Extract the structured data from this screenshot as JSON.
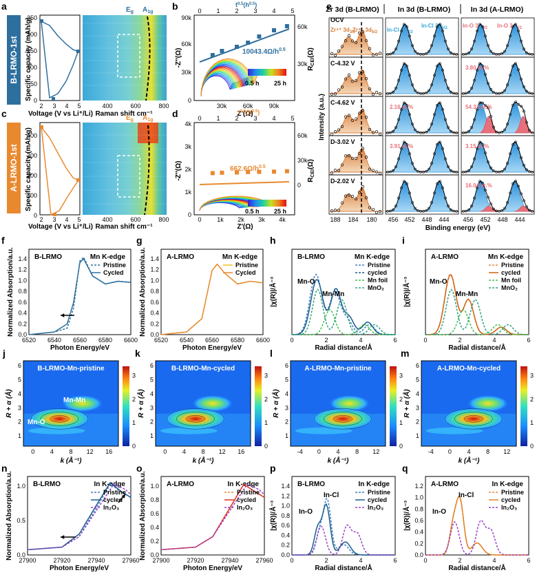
{
  "panel_labels": [
    "a",
    "b",
    "c",
    "d",
    "e",
    "f",
    "g",
    "h",
    "i",
    "j",
    "k",
    "l",
    "m",
    "n",
    "o",
    "p",
    "q"
  ],
  "colors": {
    "b_lrmo": "#2e6f9e",
    "a_lrmo": "#e8892f",
    "cyan": "#36a9d8",
    "pink": "#e8707a",
    "green": "#3ec24a",
    "purple": "#9a3fc8"
  },
  "side_labels": {
    "b": "B-LRMO-1st",
    "a": "A-LRMO-1st"
  },
  "panel_a": {
    "ylabel": "Specific capacity (mAh/g)",
    "xlabel": "Voltage (V vs Li⁺/Li)",
    "raman_xlabel": "Raman shift cm⁻¹",
    "Eg": "E",
    "Eg_sub": "g",
    "A1g": "A",
    "A1g_sub": "1g",
    "yticks": [
      "0",
      "50",
      "100",
      "150",
      "200",
      "250"
    ],
    "xticks": [
      "2",
      "3",
      "4",
      "5"
    ],
    "raman_ticks": [
      "400",
      "600",
      "800"
    ]
  },
  "panel_c": {
    "yticks": [
      "0",
      "100",
      "200",
      "300",
      "400"
    ],
    "xticks": [
      "2",
      "3",
      "4",
      "5"
    ],
    "raman_ticks": [
      "400",
      "600",
      "800"
    ]
  },
  "panel_b": {
    "ylabel": "-Z''(Ω)",
    "xlabel": "Z'(Ω)",
    "rlabel": "R",
    "rlabel_sub": "CEI",
    "rlabel_unit": "(Ω)",
    "toplabel": "t",
    "toplabel_sup": "0.5",
    "toplabel_unit": "(h",
    "toplabel_unit_sup": "0.5",
    "slope": "10043.4Ω/h",
    "slope_sup": "0.5",
    "yticks": [
      "0",
      "30k",
      "60k",
      "90k"
    ],
    "xticks": [
      "30k",
      "60k",
      "90k"
    ],
    "rticks": [
      "30k",
      "60k"
    ],
    "topticks": [
      "0",
      "1",
      "2",
      "3",
      "4",
      "5"
    ],
    "cbar_min": "0.5 h",
    "cbar_max": "25 h"
  },
  "panel_d": {
    "slope": "662.6Ω/h",
    "slope_sup": "0.5",
    "yticks": [
      "0",
      "1k",
      "2k",
      "3k",
      "4k"
    ],
    "xticks": [
      "0",
      "1k",
      "2k",
      "3k",
      "4k"
    ],
    "rticks": [
      "0",
      "30k",
      "60k"
    ],
    "topticks": [
      "0",
      "1",
      "2",
      "3",
      "4",
      "5"
    ],
    "cbar_min": "0.5 h",
    "cbar_max": "25 h"
  },
  "panel_e": {
    "headers": [
      "Zr 3d (B-LRMO)",
      "In 3d (B-LRMO)",
      "In 3d (A-LRMO)"
    ],
    "row_labels": [
      "OCV",
      "C-4.32 V",
      "C-4.62 V",
      "D-3.02 V",
      "D-2.02 V"
    ],
    "zr_labels": [
      "Zr⁴⁺ 3d",
      "Zr⁴⁺ 3d"
    ],
    "zr_subs": [
      "3/2",
      "5/2"
    ],
    "in_labels": [
      "In-Cl 3d",
      "In-Cl 3d"
    ],
    "in_subs": [
      "3/2",
      "5/2"
    ],
    "ino_labels": [
      "In-O 3d",
      "In-O 3d"
    ],
    "ino_subs": [
      "3/2",
      "5/2"
    ],
    "percent_b": [
      "2.16 at.%",
      "3.91 at.%"
    ],
    "percent_a": [
      "3.80 at.%",
      "54.33 at.%",
      "3.15 at.%",
      "16.04 at.%"
    ],
    "ylabel": "Intensity (a.u.)",
    "xlabel": "Binding energy (eV)",
    "xticks_zr": [
      "188",
      "184",
      "180"
    ],
    "xticks_in": [
      "456",
      "452",
      "448",
      "444"
    ]
  },
  "panel_f": {
    "title": "B-LRMO",
    "edge": "Mn K-edge",
    "legend": [
      "Pristine",
      "Cycled"
    ],
    "xlabel": "Photon Energy/eV",
    "ylabel": "Normalized Absorption/a.u.",
    "xticks": [
      "6520",
      "6540",
      "6560",
      "6580",
      "6600"
    ],
    "yticks": [
      "0.0",
      "0.2",
      "0.4",
      "0.6",
      "0.8",
      "1.0",
      "1.2",
      "1.4"
    ]
  },
  "panel_g": {
    "title": "A-LRMO",
    "edge": "Mn K-edge",
    "legend": [
      "Pristine",
      "Cycled"
    ],
    "xlabel": "Photon Energy/eV",
    "ylabel": "Normalized Absorption/a.u.",
    "xticks": [
      "6520",
      "6540",
      "6560",
      "6580",
      "6600"
    ],
    "yticks": [
      "0.0",
      "0.2",
      "0.4",
      "0.6",
      "0.8",
      "1.0",
      "1.2",
      "1.4"
    ]
  },
  "panel_h": {
    "title": "B-LRMO",
    "edge": "Mn K-edge",
    "legend": [
      "Pristine",
      "cycled",
      "Mn foil",
      "MnO₂"
    ],
    "ann": [
      "Mn-O",
      "Mn-Mn"
    ],
    "xlabel": "Radial distance/Å",
    "ylabel": "|χ(R)|/Å⁻³",
    "xticks": [
      "0",
      "2",
      "4",
      "6"
    ]
  },
  "panel_i": {
    "title": "A-LRMO",
    "edge": "Mn K-edge",
    "legend": [
      "Pristine",
      "cycled",
      "Mn foil",
      "MnO₂"
    ],
    "ann": [
      "Mn-O",
      "Mn-Mn"
    ],
    "xlabel": "Radial distance/Å",
    "ylabel": "|χ(R)|/Å⁻³",
    "xticks": [
      "0",
      "2",
      "4",
      "6"
    ]
  },
  "panel_j": {
    "title": "B-LRMO-Mn-pristine",
    "ann": [
      "Mn-Mn",
      "Mn-O"
    ],
    "xlabel": "k (Å⁻¹)",
    "ylabel": "R + α (Å)",
    "xticks": [
      "0",
      "4",
      "8",
      "12",
      "16"
    ],
    "yticks": [
      "1",
      "2",
      "3",
      "4",
      "5",
      "6"
    ],
    "cticks": [
      "0",
      "1",
      "2",
      "3"
    ]
  },
  "panel_k": {
    "title": "B-LRMO-Mn-cycled",
    "xlabel": "k (Å⁻¹)",
    "ylabel": "R + α (Å)",
    "xticks": [
      "0",
      "4",
      "8",
      "12",
      "16"
    ],
    "yticks": [
      "1",
      "2",
      "3",
      "4",
      "5",
      "6"
    ],
    "cticks": [
      "0",
      "1",
      "2",
      "3"
    ]
  },
  "panel_l": {
    "title": "A-LRMO-Mn-pristine",
    "xlabel": "k (Å⁻¹)",
    "ylabel": "R + α (Å)",
    "xticks": [
      "-4",
      "0",
      "4",
      "8",
      "12"
    ],
    "yticks": [
      "1",
      "2",
      "3",
      "4",
      "5",
      "6"
    ],
    "cticks": [
      "0",
      "1",
      "2",
      "3"
    ]
  },
  "panel_m": {
    "title": "A-LRMO-Mn-cycled",
    "xlabel": "k (Å⁻¹)",
    "ylabel": "R + α (Å)",
    "xticks": [
      "-4",
      "0",
      "4",
      "8",
      "12"
    ],
    "yticks": [
      "1",
      "2",
      "3",
      "4",
      "5",
      "6"
    ],
    "cticks": [
      "0",
      "1",
      "2",
      "3"
    ]
  },
  "panel_n": {
    "title": "B-LRMO",
    "edge": "In K-edge",
    "legend": [
      "Pristine",
      "cycled",
      "In₂O₃"
    ],
    "xlabel": "Photon Energy/eV",
    "ylabel": "Normalized Absorption/a.u.",
    "xticks": [
      "27900",
      "27920",
      "27940",
      "27960"
    ],
    "yticks": [
      "0.0",
      "0.5",
      "1.0"
    ]
  },
  "panel_o": {
    "title": "A-LRMO",
    "edge": "In K-edge",
    "legend": [
      "Pristine",
      "cycled",
      "In₂O₃"
    ],
    "xlabel": "Photon Energy/eV",
    "ylabel": "Normalized Absorption/a.u.",
    "xticks": [
      "27900",
      "27920",
      "27940",
      "27960"
    ],
    "yticks": [
      "0.0",
      "0.2",
      "0.4",
      "0.6",
      "0.8",
      "1.0"
    ]
  },
  "panel_p": {
    "title": "B-LRMO",
    "edge": "In K-edge",
    "legend": [
      "Pristine",
      "cycled",
      "In₂O₃"
    ],
    "ann": [
      "In-O",
      "In-Cl"
    ],
    "xlabel": "Radial distance/Å",
    "ylabel": "|χ(R)|/Å⁻³",
    "xticks": [
      "0",
      "2",
      "4",
      "6"
    ],
    "yticks": [
      "0.0",
      "0.2",
      "0.4",
      "0.6",
      "0.8",
      "1.0",
      "1.2",
      "1.4"
    ]
  },
  "panel_q": {
    "title": "A-LRMO",
    "edge": "In K-edge",
    "legend": [
      "Pristine",
      "cycled",
      "In₂O₃"
    ],
    "ann": [
      "In-O",
      "In-Cl"
    ],
    "xlabel": "Radial distance/Å",
    "ylabel": "|χ(R)|/Å⁻³",
    "xticks": [
      "0",
      "2",
      "4",
      "6"
    ],
    "yticks": [
      "0.0",
      "0.2",
      "0.4",
      "0.6",
      "0.8",
      "1.0",
      "1.2"
    ]
  },
  "chart_data": [
    {
      "type": "line",
      "panel": "a",
      "series": [
        {
          "values": [
            [
              2.0,
              248
            ],
            [
              2.5,
              230
            ],
            [
              3.0,
              210
            ],
            [
              3.6,
              185
            ],
            [
              4.1,
              165
            ],
            [
              4.5,
              150
            ],
            [
              4.8,
              148
            ]
          ]
        },
        {
          "values": [
            [
              2.0,
              248
            ],
            [
              2.9,
              3
            ],
            [
              3.5,
              10
            ],
            [
              4.1,
              40
            ],
            [
              4.5,
              90
            ],
            [
              4.75,
              148
            ]
          ]
        }
      ],
      "xlim": [
        2,
        5
      ],
      "ylim": [
        0,
        260
      ]
    },
    {
      "type": "scatter",
      "panel": "b",
      "x": [
        0.7,
        1.2,
        2.0,
        2.6,
        3.2,
        4.0,
        4.7
      ],
      "y": [
        44000,
        48000,
        52000,
        56000,
        62000,
        68000,
        72000
      ],
      "xlim": [
        0,
        5
      ],
      "ylim": [
        0,
        80000
      ]
    },
    {
      "type": "line",
      "panel": "c",
      "series": [
        {
          "values": [
            [
              2.0,
              430
            ],
            [
              3,
              380
            ],
            [
              4,
              300
            ],
            [
              4.6,
              240
            ],
            [
              4.9,
              230
            ]
          ]
        },
        {
          "values": [
            [
              2.0,
              430
            ],
            [
              3.0,
              5
            ],
            [
              3.8,
              20
            ],
            [
              4.5,
              120
            ],
            [
              4.9,
              230
            ]
          ]
        }
      ],
      "xlim": [
        2,
        5
      ],
      "ylim": [
        0,
        450
      ]
    },
    {
      "type": "scatter",
      "panel": "d",
      "x": [
        0.7,
        1.2,
        2.0,
        2.6,
        3.2,
        4.0,
        4.7
      ],
      "y": [
        1760,
        1780,
        1790,
        1810,
        1820,
        1830,
        1850
      ],
      "xlim": [
        0,
        5
      ],
      "ylim": [
        0,
        4000
      ]
    },
    {
      "type": "line",
      "panel": "f",
      "series": [
        {
          "name": "Pristine",
          "values": [
            [
              6520,
              0
            ],
            [
              6540,
              0.05
            ],
            [
              6550,
              0.12
            ],
            [
              6555,
              0.5
            ],
            [
              6560,
              1.38
            ],
            [
              6563,
              1.45
            ],
            [
              6570,
              1.1
            ],
            [
              6580,
              0.95
            ],
            [
              6590,
              1.0
            ],
            [
              6600,
              0.98
            ]
          ]
        },
        {
          "name": "Cycled",
          "values": [
            [
              6520,
              0
            ],
            [
              6540,
              0.05
            ],
            [
              6550,
              0.2
            ],
            [
              6555,
              0.6
            ],
            [
              6560,
              1.35
            ],
            [
              6563,
              1.42
            ],
            [
              6570,
              1.1
            ],
            [
              6580,
              0.95
            ],
            [
              6590,
              1.0
            ],
            [
              6600,
              0.98
            ]
          ]
        }
      ],
      "xlim": [
        6520,
        6600
      ],
      "ylim": [
        0,
        1.6
      ]
    },
    {
      "type": "line",
      "panel": "g",
      "series": [
        {
          "name": "Pristine",
          "values": [
            [
              6520,
              0
            ],
            [
              6540,
              0.05
            ],
            [
              6552,
              0.3
            ],
            [
              6560,
              1.2
            ],
            [
              6564,
              1.32
            ],
            [
              6570,
              1.15
            ],
            [
              6580,
              0.95
            ],
            [
              6590,
              1.0
            ],
            [
              6600,
              0.97
            ]
          ]
        },
        {
          "name": "Cycled",
          "values": [
            [
              6520,
              0
            ],
            [
              6540,
              0.05
            ],
            [
              6552,
              0.3
            ],
            [
              6560,
              1.2
            ],
            [
              6564,
              1.32
            ],
            [
              6570,
              1.15
            ],
            [
              6580,
              0.95
            ],
            [
              6590,
              1.0
            ],
            [
              6600,
              0.97
            ]
          ]
        }
      ],
      "xlim": [
        6520,
        6600
      ],
      "ylim": [
        0,
        1.6
      ]
    },
    {
      "type": "line",
      "panel": "n",
      "series": [
        {
          "name": "Pristine",
          "values": [
            [
              27900,
              0
            ],
            [
              27920,
              0.05
            ],
            [
              27930,
              0.25
            ],
            [
              27940,
              0.8
            ],
            [
              27948,
              1.25
            ],
            [
              27955,
              1.1
            ],
            [
              27960,
              1.0
            ]
          ]
        },
        {
          "name": "cycled",
          "values": [
            [
              27900,
              0
            ],
            [
              27920,
              0.05
            ],
            [
              27930,
              0.3
            ],
            [
              27940,
              0.85
            ],
            [
              27948,
              1.28
            ],
            [
              27955,
              1.1
            ],
            [
              27960,
              1.0
            ]
          ]
        },
        {
          "name": "In₂O₃",
          "values": [
            [
              27900,
              0
            ],
            [
              27920,
              0.05
            ],
            [
              27930,
              0.25
            ],
            [
              27940,
              0.75
            ],
            [
              27950,
              1.25
            ],
            [
              27957,
              1.15
            ],
            [
              27960,
              1.05
            ]
          ]
        }
      ],
      "xlim": [
        27900,
        27960
      ],
      "ylim": [
        -0.1,
        1.4
      ]
    },
    {
      "type": "line",
      "panel": "o",
      "series": [
        {
          "name": "Pristine",
          "values": [
            [
              27900,
              0
            ],
            [
              27920,
              0.05
            ],
            [
              27930,
              0.25
            ],
            [
              27940,
              0.8
            ],
            [
              27948,
              1.25
            ],
            [
              27955,
              1.1
            ],
            [
              27960,
              1.0
            ]
          ]
        },
        {
          "name": "cycled",
          "values": [
            [
              27900,
              0
            ],
            [
              27920,
              0.05
            ],
            [
              27930,
              0.25
            ],
            [
              27940,
              0.8
            ],
            [
              27948,
              1.25
            ],
            [
              27955,
              1.1
            ],
            [
              27960,
              1.0
            ]
          ]
        },
        {
          "name": "In₂O₃",
          "values": [
            [
              27900,
              0
            ],
            [
              27920,
              0.05
            ],
            [
              27930,
              0.25
            ],
            [
              27940,
              0.75
            ],
            [
              27950,
              1.25
            ],
            [
              27957,
              1.15
            ],
            [
              27960,
              1.05
            ]
          ]
        }
      ],
      "xlim": [
        27900,
        27960
      ],
      "ylim": [
        -0.1,
        1.4
      ]
    }
  ]
}
